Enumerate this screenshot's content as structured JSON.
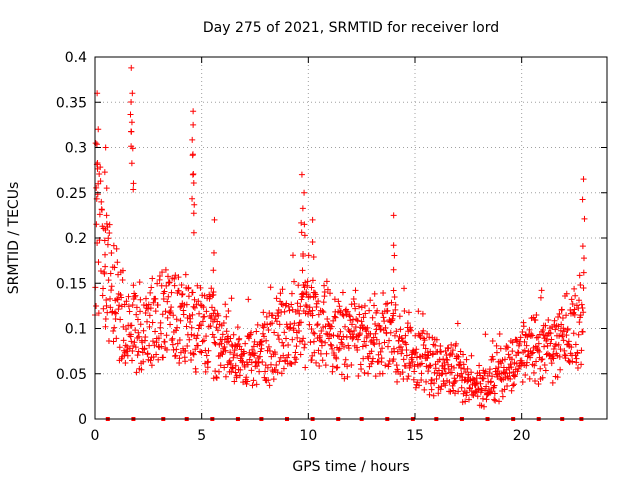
{
  "chart_data": {
    "type": "scatter",
    "title": "Day 275 of 2021, SRMTID for receiver lord",
    "xlabel": "GPS time / hours",
    "ylabel": "SRMTID / TECUs",
    "xlim": [
      0,
      24
    ],
    "ylim": [
      0,
      0.4
    ],
    "x_ticks": [
      0,
      5,
      10,
      15,
      20
    ],
    "x_tick_labels": [
      "0",
      "5",
      "10",
      "15",
      "20"
    ],
    "y_ticks": [
      0,
      0.05,
      0.1,
      0.15,
      0.2,
      0.25,
      0.3,
      0.35,
      0.4
    ],
    "y_tick_labels": [
      "0",
      "0.05",
      "0.1",
      "0.15",
      "0.2",
      "0.25",
      "0.3",
      "0.35",
      "0.4"
    ],
    "grid": true,
    "marker": "plus",
    "series": [
      {
        "name": "SRMTID",
        "color": "#ff0000",
        "profile": [
          [
            0.0,
            0.22
          ],
          [
            0.5,
            0.16
          ],
          [
            1.0,
            0.13
          ],
          [
            1.5,
            0.11
          ],
          [
            2.0,
            0.1
          ],
          [
            3.0,
            0.11
          ],
          [
            4.0,
            0.11
          ],
          [
            5.0,
            0.1
          ],
          [
            6.0,
            0.08
          ],
          [
            7.0,
            0.06
          ],
          [
            8.0,
            0.08
          ],
          [
            9.0,
            0.1
          ],
          [
            10.0,
            0.11
          ],
          [
            11.0,
            0.1
          ],
          [
            12.0,
            0.09
          ],
          [
            13.0,
            0.09
          ],
          [
            14.0,
            0.09
          ],
          [
            15.0,
            0.07
          ],
          [
            16.0,
            0.06
          ],
          [
            17.0,
            0.05
          ],
          [
            18.0,
            0.035
          ],
          [
            19.0,
            0.05
          ],
          [
            20.0,
            0.07
          ],
          [
            21.0,
            0.08
          ],
          [
            22.0,
            0.09
          ],
          [
            23.0,
            0.1
          ]
        ],
        "start": 0.0,
        "end": 22.9,
        "peaks": [
          [
            0.1,
            0.36
          ],
          [
            0.5,
            0.3
          ],
          [
            1.7,
            0.388
          ],
          [
            1.75,
            0.36
          ],
          [
            4.6,
            0.34
          ],
          [
            4.6,
            0.325
          ],
          [
            5.6,
            0.22
          ],
          [
            9.7,
            0.27
          ],
          [
            9.8,
            0.25
          ],
          [
            10.2,
            0.22
          ],
          [
            14.0,
            0.225
          ],
          [
            22.9,
            0.265
          ]
        ]
      }
    ],
    "zero_level_markers_x": [
      0.6,
      1.8,
      3.2,
      4.3,
      5.5,
      6.7,
      7.8,
      9.0,
      10.2,
      11.4,
      12.5,
      13.7,
      14.9,
      16.0,
      17.2,
      18.4,
      19.6,
      20.8,
      21.9,
      22.8
    ]
  }
}
